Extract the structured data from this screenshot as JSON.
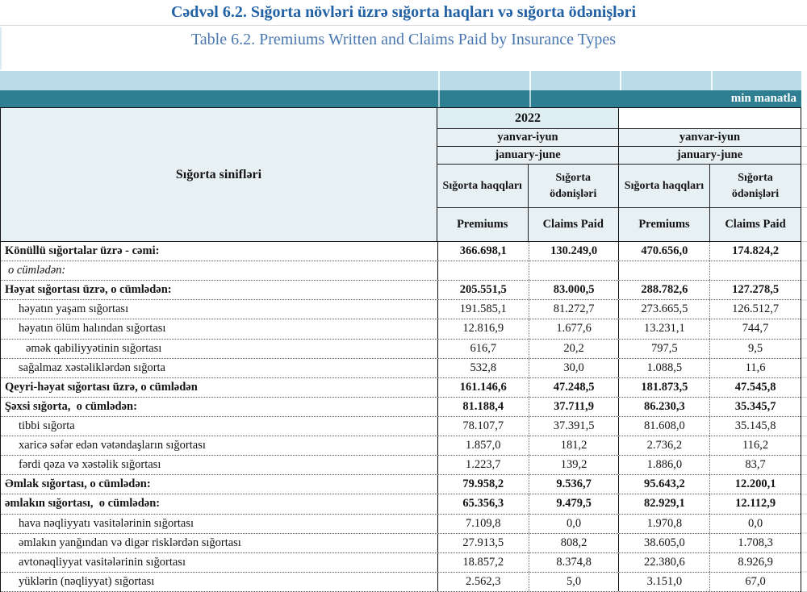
{
  "titles": {
    "az": "Cədvəl 6.2. Sığorta növləri üzrə sığorta haqları və sığorta ödənişləri",
    "en": "Table 6.2. Premiums Written and Claims Paid by Insurance Types"
  },
  "unit_label": "min manatla",
  "table": {
    "row_header_label": "Sığorta sinifləri",
    "column_groups": [
      {
        "year": "2022",
        "period_local": "yanvar-iyun",
        "period_en": "january-june",
        "columns": [
          {
            "label_local": "Sığorta haqqları",
            "label_en": "Premiums"
          },
          {
            "label_local": "Sığorta ödənişləri",
            "label_en": "Claims Paid"
          }
        ]
      },
      {
        "year": "",
        "period_local": "yanvar-iyun",
        "period_en": "january-june",
        "columns": [
          {
            "label_local": "Sığorta haqqları",
            "label_en": "Premiums"
          },
          {
            "label_local": "Sığorta ödənişləri",
            "label_en": "Claims Paid"
          }
        ]
      }
    ],
    "rows": [
      {
        "label": "Könüllü sığortalar üzrə - cəmi:",
        "bold": true,
        "italic": false,
        "indent": 0,
        "values": [
          "366.698,1",
          "130.249,0",
          "470.656,0",
          "174.824,2"
        ]
      },
      {
        "label": "o cümlədən:",
        "bold": false,
        "italic": true,
        "indent": 0,
        "values": [
          "",
          "",
          "",
          ""
        ]
      },
      {
        "label": "Həyat sığortası üzrə, o cümlədən:",
        "bold": true,
        "italic": false,
        "indent": 0,
        "values": [
          "205.551,5",
          "83.000,5",
          "288.782,6",
          "127.278,5"
        ]
      },
      {
        "label": "həyatın yaşam sığortası",
        "bold": false,
        "italic": false,
        "indent": 1,
        "values": [
          "191.585,1",
          "81.272,7",
          "273.665,5",
          "126.512,7"
        ]
      },
      {
        "label": "həyatın ölüm halından sığortası",
        "bold": false,
        "italic": false,
        "indent": 1,
        "values": [
          "12.816,9",
          "1.677,6",
          "13.231,1",
          "744,7"
        ]
      },
      {
        "label": "əmək qabiliyyətinin sığortası",
        "bold": false,
        "italic": false,
        "indent": 2,
        "values": [
          "616,7",
          "20,2",
          "797,5",
          "9,5"
        ]
      },
      {
        "label": "sağalmaz xəstəliklərdən sığorta",
        "bold": false,
        "italic": false,
        "indent": 1,
        "values": [
          "532,8",
          "30,0",
          "1.088,5",
          "11,6"
        ]
      },
      {
        "label": "Qeyri-həyat sığortası üzrə, o cümlədən",
        "bold": true,
        "italic": false,
        "indent": 0,
        "values": [
          "161.146,6",
          "47.248,5",
          "181.873,5",
          "47.545,8"
        ]
      },
      {
        "label": "Şəxsi sığorta,  o cümlədən:",
        "bold": true,
        "italic": false,
        "indent": 0,
        "values": [
          "81.188,4",
          "37.711,9",
          "86.230,3",
          "35.345,7"
        ]
      },
      {
        "label": "tibbi sığorta",
        "bold": false,
        "italic": false,
        "indent": 1,
        "values": [
          "78.107,7",
          "37.391,5",
          "81.608,0",
          "35.145,8"
        ]
      },
      {
        "label": "xaricə səfər edən vətəndaşların sığortası",
        "bold": false,
        "italic": false,
        "indent": 1,
        "values": [
          "1.857,0",
          "181,2",
          "2.736,2",
          "116,2"
        ]
      },
      {
        "label": "fərdi qəza və xəstəlik sığortası",
        "bold": false,
        "italic": false,
        "indent": 1,
        "values": [
          "1.223,7",
          "139,2",
          "1.886,0",
          "83,7"
        ]
      },
      {
        "label": "Əmlak sığortası, o cümlədən:",
        "bold": true,
        "italic": false,
        "indent": 0,
        "values": [
          "79.958,2",
          "9.536,7",
          "95.643,2",
          "12.200,1"
        ]
      },
      {
        "label": "əmlakın sığortası,  o cümlədən:",
        "bold": true,
        "italic": false,
        "indent": 0,
        "values": [
          "65.356,3",
          "9.479,5",
          "82.929,1",
          "12.112,9"
        ]
      },
      {
        "label": "hava nəqliyyatı vasitələrinin sığortası",
        "bold": false,
        "italic": false,
        "indent": 1,
        "values": [
          "7.109,8",
          "0,0",
          "1.970,8",
          "0,0"
        ]
      },
      {
        "label": "əmlakın yanğından və digər risklərdən sığortası",
        "bold": false,
        "italic": false,
        "indent": 1,
        "values": [
          "27.913,5",
          "808,2",
          "38.605,0",
          "1.708,3"
        ]
      },
      {
        "label": "avtonəqliyyat vasitələrinin sığortası",
        "bold": false,
        "italic": false,
        "indent": 1,
        "values": [
          "18.857,2",
          "8.374,8",
          "22.380,6",
          "8.926,9"
        ]
      },
      {
        "label": "yüklərin (nəqliyyat) sığortası",
        "bold": false,
        "italic": false,
        "indent": 1,
        "values": [
          "2.562,3",
          "5,0",
          "3.151,0",
          "67,0"
        ]
      }
    ]
  },
  "colors": {
    "title_az": "#2262a6",
    "title_en": "#4a78b2",
    "band_light": "#b9dce8",
    "band_teal": "#2f7f93",
    "header_bg": "#e7f1f4",
    "year_bg": "#ddedf2"
  }
}
